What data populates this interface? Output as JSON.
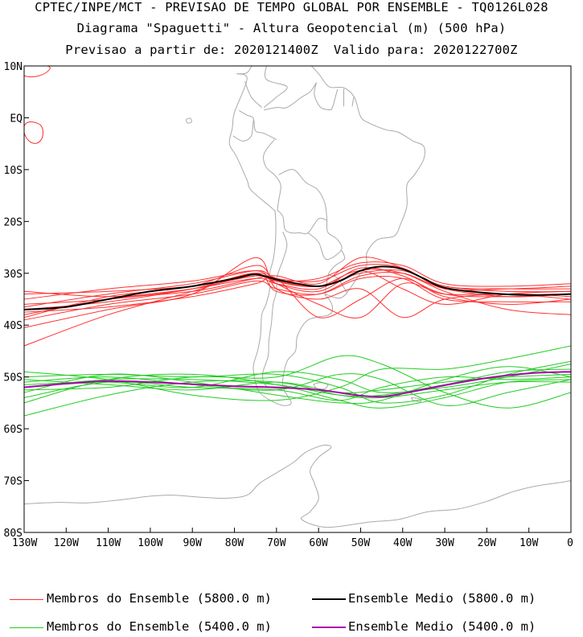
{
  "titles": [
    "CPTEC/INPE/MCT - PREVISAO DE TEMPO GLOBAL POR ENSEMBLE - TQ0126L028",
    "Diagrama \"Spaguetti\" - Altura Geopotencial (m) (500 hPa)",
    "Previsao a partir de: 2020121400Z  Valido para: 2020122700Z"
  ],
  "chart_data": {
    "type": "line",
    "title": "Diagrama \"Spaguetti\" - Altura Geopotencial (m) (500 hPa)",
    "xlabel": "Longitude",
    "ylabel": "Latitude",
    "xlim": [
      -130,
      0
    ],
    "ylim": [
      -80,
      10
    ],
    "x_ticks": [
      -130,
      -120,
      -110,
      -100,
      -90,
      -80,
      -70,
      -60,
      -50,
      -40,
      -30,
      -20,
      -10,
      0
    ],
    "x_tick_labels": [
      "130W",
      "120W",
      "110W",
      "100W",
      "90W",
      "80W",
      "70W",
      "60W",
      "50W",
      "40W",
      "30W",
      "20W",
      "10W",
      "0"
    ],
    "y_ticks": [
      10,
      0,
      -10,
      -20,
      -30,
      -40,
      -50,
      -60,
      -70,
      -80
    ],
    "y_tick_labels": [
      "10N",
      "EQ",
      "10S",
      "20S",
      "30S",
      "40S",
      "50S",
      "60S",
      "70S",
      "80S"
    ],
    "colors": {
      "m5800": "#ff3030",
      "m5400": "#22cc22",
      "mean5800": "#000000",
      "mean5400": "#aa00aa",
      "coast": "#aaaaaa"
    },
    "series": [
      {
        "name": "Membros do Ensemble (5800.0 m)",
        "role": "member5800",
        "lon": [
          -130,
          -110,
          -90,
          -75,
          -70,
          -60,
          -50,
          -40,
          -30,
          -15,
          0
        ],
        "lat": [
          -37.0,
          -35.5,
          -33.0,
          -30.5,
          -31.5,
          -32.5,
          -30.0,
          -29.5,
          -32.5,
          -33.5,
          -33.5
        ]
      },
      {
        "name": "member",
        "role": "member5800",
        "lon": [
          -130,
          -110,
          -90,
          -75,
          -70,
          -60,
          -50,
          -40,
          -30,
          -15,
          0
        ],
        "lat": [
          -38.0,
          -35.0,
          -33.0,
          -31.0,
          -32.0,
          -33.0,
          -29.0,
          -30.5,
          -34.0,
          -34.5,
          -34.0
        ]
      },
      {
        "name": "member",
        "role": "member5800",
        "lon": [
          -130,
          -110,
          -90,
          -75,
          -70,
          -60,
          -50,
          -40,
          -30,
          -15,
          0
        ],
        "lat": [
          -36.5,
          -34.0,
          -32.0,
          -29.5,
          -31.0,
          -31.5,
          -28.5,
          -29.0,
          -33.0,
          -33.0,
          -32.5
        ]
      },
      {
        "name": "member",
        "role": "member5800",
        "lon": [
          -130,
          -110,
          -90,
          -75,
          -70,
          -60,
          -50,
          -40,
          -30,
          -15,
          0
        ],
        "lat": [
          -39.0,
          -36.0,
          -34.0,
          -31.5,
          -33.0,
          -34.0,
          -31.0,
          -31.0,
          -35.0,
          -35.5,
          -35.5
        ]
      },
      {
        "name": "member",
        "role": "member5800",
        "lon": [
          -130,
          -110,
          -90,
          -75,
          -70,
          -60,
          -50,
          -40,
          -30,
          -15,
          0
        ],
        "lat": [
          -44.0,
          -38.0,
          -33.5,
          -30.0,
          -32.0,
          -36.0,
          -38.5,
          -32.0,
          -34.0,
          -34.0,
          -35.0
        ]
      },
      {
        "name": "member",
        "role": "member5800",
        "lon": [
          -130,
          -110,
          -90,
          -75,
          -70,
          -60,
          -50,
          -40,
          -30,
          -15,
          0
        ],
        "lat": [
          -40.5,
          -37.0,
          -34.0,
          -27.0,
          -33.0,
          -35.0,
          -33.0,
          -38.5,
          -35.0,
          -34.0,
          -34.5
        ]
      },
      {
        "name": "member",
        "role": "member5800",
        "lon": [
          -130,
          -110,
          -90,
          -75,
          -70,
          -60,
          -50,
          -40,
          -30,
          -15,
          0
        ],
        "lat": [
          -34.0,
          -33.5,
          -32.5,
          -30.5,
          -31.5,
          -31.0,
          -28.0,
          -28.5,
          -32.0,
          -32.5,
          -32.0
        ]
      },
      {
        "name": "member",
        "role": "member5800",
        "lon": [
          -130,
          -110,
          -90,
          -75,
          -70,
          -60,
          -50,
          -40,
          -30,
          -15,
          0
        ],
        "lat": [
          -35.0,
          -33.0,
          -31.5,
          -29.5,
          -32.0,
          -33.5,
          -29.5,
          -30.0,
          -33.5,
          -37.0,
          -38.0
        ]
      },
      {
        "name": "member",
        "role": "member5800",
        "lon": [
          -130,
          -110,
          -90,
          -75,
          -70,
          -60,
          -50,
          -40,
          -30,
          -15,
          0
        ],
        "lat": [
          -33.5,
          -34.5,
          -33.5,
          -31.0,
          -30.5,
          -32.0,
          -27.0,
          -29.0,
          -32.5,
          -33.0,
          -33.0
        ]
      },
      {
        "name": "member",
        "role": "member5800",
        "lon": [
          -130,
          -110,
          -90,
          -75,
          -70,
          -60,
          -50,
          -40,
          -30,
          -15,
          0
        ],
        "lat": [
          -37.5,
          -36.5,
          -34.5,
          -32.0,
          -31.0,
          -38.5,
          -35.0,
          -31.0,
          -34.5,
          -36.0,
          -35.0
        ]
      },
      {
        "name": "member",
        "role": "member5800",
        "lon": [
          -130,
          -110,
          -90,
          -75,
          -70,
          -60,
          -50,
          -40,
          -30,
          -15,
          0
        ],
        "lat": [
          -36.0,
          -35.0,
          -33.0,
          -30.0,
          -33.5,
          -34.0,
          -30.5,
          -30.0,
          -33.0,
          -34.5,
          -34.0
        ]
      },
      {
        "name": "member",
        "role": "member5800",
        "lon": [
          -130,
          -110,
          -90,
          -75,
          -70,
          -60,
          -50,
          -40,
          -30,
          -15,
          0
        ],
        "lat": [
          -38.5,
          -34.5,
          -32.5,
          -28.5,
          -31.5,
          -32.5,
          -29.5,
          -33.0,
          -36.0,
          -34.0,
          -33.5
        ]
      },
      {
        "name": "Membros do Ensemble (5400.0 m)",
        "role": "member5400",
        "lon": [
          -130,
          -110,
          -90,
          -70,
          -55,
          -45,
          -30,
          -15,
          0
        ],
        "lat": [
          -52.0,
          -50.5,
          -50.5,
          -51.5,
          -53.5,
          -53.5,
          -51.5,
          -49.0,
          -48.5
        ]
      },
      {
        "name": "member",
        "role": "member5400",
        "lon": [
          -130,
          -110,
          -90,
          -70,
          -55,
          -45,
          -30,
          -15,
          0
        ],
        "lat": [
          -54.0,
          -51.0,
          -52.0,
          -52.5,
          -54.5,
          -52.0,
          -50.0,
          -50.5,
          -50.0
        ]
      },
      {
        "name": "member",
        "role": "member5400",
        "lon": [
          -130,
          -110,
          -90,
          -70,
          -55,
          -45,
          -30,
          -15,
          0
        ],
        "lat": [
          -50.0,
          -49.5,
          -50.0,
          -49.5,
          -52.0,
          -55.0,
          -53.5,
          -49.5,
          -47.0
        ]
      },
      {
        "name": "member",
        "role": "member5400",
        "lon": [
          -130,
          -110,
          -90,
          -70,
          -55,
          -45,
          -30,
          -15,
          0
        ],
        "lat": [
          -57.5,
          -53.5,
          -51.0,
          -51.0,
          -53.5,
          -54.0,
          -52.5,
          -51.0,
          -51.0
        ]
      },
      {
        "name": "member",
        "role": "member5400",
        "lon": [
          -130,
          -110,
          -90,
          -70,
          -55,
          -45,
          -30,
          -15,
          0
        ],
        "lat": [
          -51.0,
          -50.0,
          -51.5,
          -52.5,
          -49.5,
          -50.5,
          -55.5,
          -53.0,
          -50.5
        ]
      },
      {
        "name": "member",
        "role": "member5400",
        "lon": [
          -130,
          -110,
          -90,
          -70,
          -55,
          -45,
          -30,
          -15,
          0
        ],
        "lat": [
          -49.0,
          -50.5,
          -53.5,
          -54.5,
          -52.0,
          -48.5,
          -48.5,
          -46.5,
          -44.0
        ]
      },
      {
        "name": "member",
        "role": "member5400",
        "lon": [
          -130,
          -110,
          -90,
          -70,
          -55,
          -45,
          -30,
          -15,
          0
        ],
        "lat": [
          -52.5,
          -52.0,
          -50.0,
          -50.0,
          -46.0,
          -47.5,
          -53.0,
          -56.0,
          -53.0
        ]
      },
      {
        "name": "member",
        "role": "member5400",
        "lon": [
          -130,
          -110,
          -90,
          -70,
          -55,
          -45,
          -30,
          -15,
          0
        ],
        "lat": [
          -55.0,
          -50.5,
          -49.5,
          -51.5,
          -54.5,
          -56.0,
          -54.0,
          -51.0,
          -50.5
        ]
      },
      {
        "name": "member",
        "role": "member5400",
        "lon": [
          -130,
          -110,
          -90,
          -70,
          -55,
          -45,
          -30,
          -15,
          0
        ],
        "lat": [
          -50.5,
          -51.5,
          -52.5,
          -51.0,
          -53.0,
          -52.5,
          -51.0,
          -50.0,
          -49.5
        ]
      },
      {
        "name": "member",
        "role": "member5400",
        "lon": [
          -130,
          -110,
          -90,
          -70,
          -55,
          -45,
          -30,
          -15,
          0
        ],
        "lat": [
          -53.0,
          -49.5,
          -51.0,
          -53.5,
          -55.0,
          -54.5,
          -50.5,
          -48.0,
          -50.0
        ]
      },
      {
        "name": "member",
        "role": "member5400",
        "lon": [
          -130,
          -110,
          -90,
          -70,
          -55,
          -45,
          -30,
          -15,
          0
        ],
        "lat": [
          -51.5,
          -51.0,
          -52.0,
          -49.0,
          -50.5,
          -53.0,
          -52.0,
          -50.0,
          -47.5
        ]
      },
      {
        "name": "Ensemble Medio (5800.0 m)",
        "role": "mean5800",
        "lon": [
          -130,
          -120,
          -110,
          -100,
          -90,
          -80,
          -75,
          -70,
          -65,
          -60,
          -55,
          -50,
          -45,
          -40,
          -35,
          -30,
          -20,
          -10,
          0
        ],
        "lat": [
          -37.0,
          -36.5,
          -35.0,
          -33.5,
          -32.5,
          -31.0,
          -30.2,
          -31.2,
          -32.0,
          -32.5,
          -31.5,
          -29.5,
          -28.7,
          -29.2,
          -31.0,
          -32.8,
          -33.8,
          -34.2,
          -34.0
        ]
      },
      {
        "name": "Ensemble Medio (5400.0 m)",
        "role": "mean5400",
        "lon": [
          -130,
          -120,
          -110,
          -100,
          -90,
          -80,
          -70,
          -60,
          -50,
          -45,
          -40,
          -30,
          -20,
          -10,
          0
        ],
        "lat": [
          -52.0,
          -51.3,
          -50.8,
          -51.0,
          -51.4,
          -51.8,
          -52.0,
          -52.5,
          -53.6,
          -53.8,
          -53.2,
          -51.6,
          -50.2,
          -49.3,
          -49.0
        ]
      }
    ]
  },
  "legend": [
    {
      "label": "Membros do Ensemble (5800.0 m)",
      "color": "#ff3030",
      "width": 1
    },
    {
      "label": "Ensemble Medio (5800.0 m)",
      "color": "#000000",
      "width": 2
    },
    {
      "label": "Membros do Ensemble (5400.0 m)",
      "color": "#22cc22",
      "width": 1
    },
    {
      "label": "Ensemble Medio (5400.0 m)",
      "color": "#aa00aa",
      "width": 2
    }
  ]
}
